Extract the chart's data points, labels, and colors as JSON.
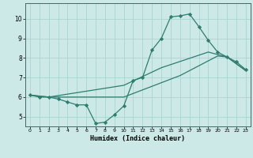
{
  "xlabel": "Humidex (Indice chaleur)",
  "background_color": "#cce9e8",
  "grid_color": "#aad4d2",
  "line_color": "#2e7d6e",
  "xlim": [
    -0.5,
    23.5
  ],
  "ylim": [
    4.5,
    10.8
  ],
  "xticks": [
    0,
    1,
    2,
    3,
    4,
    5,
    6,
    7,
    8,
    9,
    10,
    11,
    12,
    13,
    14,
    15,
    16,
    17,
    18,
    19,
    20,
    21,
    22,
    23
  ],
  "yticks": [
    5,
    6,
    7,
    8,
    9,
    10
  ],
  "line1_x": [
    0,
    1,
    2,
    3,
    4,
    5,
    6,
    7,
    8,
    9,
    10,
    11,
    12,
    13,
    14,
    15,
    16,
    17,
    18,
    19,
    20,
    21,
    22,
    23
  ],
  "line1_y": [
    6.1,
    6.0,
    6.0,
    5.9,
    5.75,
    5.6,
    5.6,
    4.65,
    4.72,
    5.1,
    5.55,
    6.85,
    7.0,
    8.4,
    9.0,
    10.1,
    10.15,
    10.25,
    9.6,
    8.9,
    8.3,
    8.05,
    7.8,
    7.4
  ],
  "line2_x": [
    0,
    2,
    10,
    16,
    20,
    21,
    23
  ],
  "line2_y": [
    6.1,
    6.0,
    6.0,
    7.1,
    8.1,
    8.05,
    7.35
  ],
  "line3_x": [
    0,
    2,
    10,
    14,
    19,
    21,
    23
  ],
  "line3_y": [
    6.1,
    6.0,
    6.6,
    7.5,
    8.3,
    8.05,
    7.35
  ]
}
